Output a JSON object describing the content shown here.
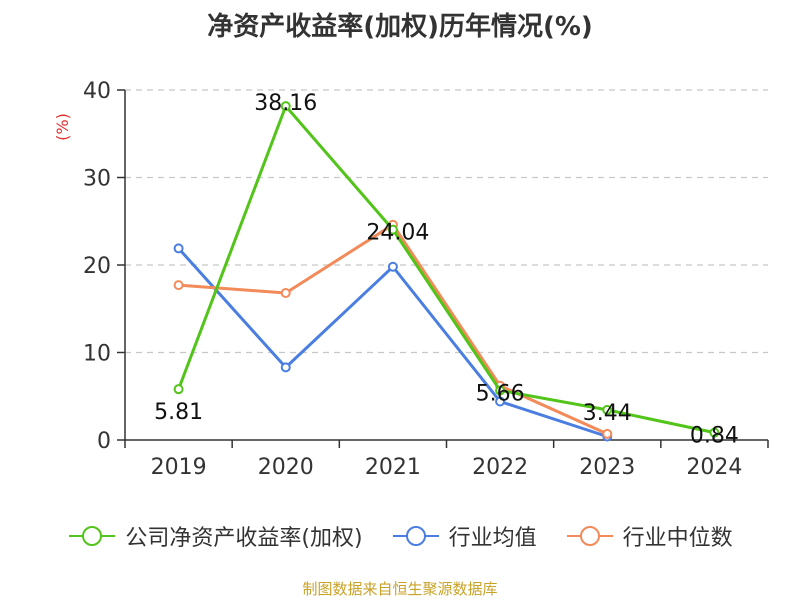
{
  "chart_data": {
    "type": "line",
    "title": "净资产收益率(加权)历年情况(%)",
    "ylabel": "(%)",
    "xlabel": "",
    "ylim": [
      0,
      40
    ],
    "yticks": [
      0,
      10,
      20,
      30,
      40
    ],
    "categories": [
      "2019",
      "2020",
      "2021",
      "2022",
      "2023",
      "2024"
    ],
    "grid": true,
    "legend_position": "bottom",
    "series": [
      {
        "name": "公司净资产收益率(加权)",
        "color": "#52c41a",
        "values": [
          5.81,
          38.16,
          24.04,
          5.66,
          3.44,
          0.84
        ],
        "labels": [
          "5.81",
          "38.16",
          "24.04",
          "5.66",
          "3.44",
          "0.84"
        ]
      },
      {
        "name": "行业均值",
        "color": "#4a7ee0",
        "values": [
          21.9,
          8.3,
          19.8,
          4.4,
          0.4,
          null
        ]
      },
      {
        "name": "行业中位数",
        "color": "#f28a5a",
        "values": [
          17.7,
          16.8,
          24.6,
          6.2,
          0.7,
          null
        ]
      }
    ]
  },
  "source": "制图数据来自恒生聚源数据库"
}
